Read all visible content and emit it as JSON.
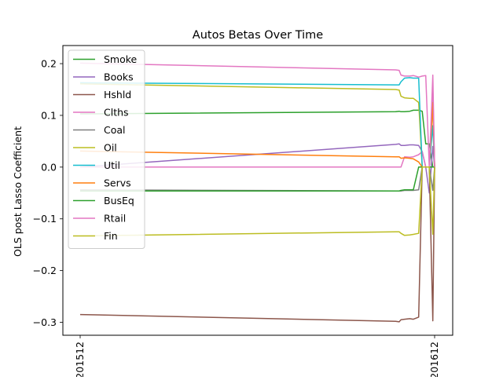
{
  "chart_data": {
    "type": "line",
    "title": "Autos Betas Over Time",
    "xlabel": "",
    "ylabel": "OLS post Lasso Coefficient",
    "x_ticks": [
      "201512",
      "201612"
    ],
    "ylim": [
      -0.325,
      0.235
    ],
    "y_ticks": [
      -0.3,
      -0.2,
      -0.1,
      0.0,
      0.1,
      0.2
    ],
    "y_tick_labels": [
      "−0.3",
      "−0.2",
      "−0.1",
      "0.0",
      "0.1",
      "0.2"
    ],
    "grid": false,
    "legend": "upper-left",
    "x_index": [
      0,
      0.89,
      0.9,
      0.905,
      0.915,
      0.93,
      0.94,
      0.955,
      0.965,
      0.975,
      0.985,
      0.995,
      1.0
    ],
    "series": [
      {
        "name": "Smoke",
        "color": "#2ca02c",
        "values": [
          0.103,
          0.107,
          0.108,
          0.107,
          0.107,
          0.108,
          0.11,
          0.11,
          0.108,
          0.045,
          0.045,
          0.0,
          0.0
        ]
      },
      {
        "name": "Books",
        "color": "#9467bd",
        "values": [
          0.0,
          0.044,
          0.045,
          0.042,
          0.042,
          0.043,
          0.043,
          0.042,
          0.03,
          0.0,
          -0.05,
          0.04,
          0.0
        ]
      },
      {
        "name": "Hshld",
        "color": "#8c564b",
        "values": [
          -0.285,
          -0.298,
          -0.299,
          -0.295,
          -0.294,
          -0.293,
          -0.294,
          -0.29,
          0.0,
          0.0,
          0.0,
          -0.297,
          0.0
        ]
      },
      {
        "name": "Clths",
        "color": "#e377c2",
        "values": [
          0.0,
          0.0,
          0.0,
          0.0,
          0.02,
          0.019,
          0.02,
          0.024,
          0.03,
          0.0,
          0.0,
          0.15,
          0.0
        ]
      },
      {
        "name": "Coal",
        "color": "#7f7f7f",
        "values": [
          -0.044,
          -0.046,
          -0.046,
          -0.046,
          -0.045,
          -0.045,
          -0.045,
          -0.044,
          0.0,
          0.0,
          0.0,
          -0.045,
          0.0
        ]
      },
      {
        "name": "Oil",
        "color": "#bcbd22",
        "values": [
          0.161,
          0.15,
          0.149,
          0.137,
          0.134,
          0.133,
          0.133,
          0.125,
          0.0,
          0.0,
          0.0,
          0.12,
          0.0
        ]
      },
      {
        "name": "Util",
        "color": "#17becf",
        "values": [
          0.163,
          0.159,
          0.159,
          0.165,
          0.172,
          0.173,
          0.172,
          0.172,
          0.0,
          0.0,
          0.0,
          0.08,
          0.0
        ]
      },
      {
        "name": "Servs",
        "color": "#ff7f0e",
        "values": [
          0.031,
          0.02,
          0.02,
          0.017,
          0.018,
          0.017,
          0.016,
          0.01,
          0.0,
          0.0,
          0.0,
          0.125,
          0.0
        ]
      },
      {
        "name": "BusEq",
        "color": "#2ca02c",
        "values": [
          -0.046,
          -0.046,
          -0.046,
          -0.045,
          -0.044,
          -0.044,
          -0.044,
          0.0,
          0.0,
          0.0,
          0.0,
          0.0,
          0.0
        ]
      },
      {
        "name": "Rtail",
        "color": "#e377c2",
        "values": [
          0.201,
          0.188,
          0.187,
          0.178,
          0.176,
          0.176,
          0.177,
          0.174,
          0.176,
          0.177,
          0.0,
          0.178,
          0.0
        ]
      },
      {
        "name": "Fin",
        "color": "#bcbd22",
        "values": [
          -0.133,
          -0.125,
          -0.125,
          -0.128,
          -0.132,
          -0.131,
          -0.13,
          -0.128,
          0.0,
          0.0,
          0.0,
          -0.13,
          0.0
        ]
      }
    ]
  }
}
